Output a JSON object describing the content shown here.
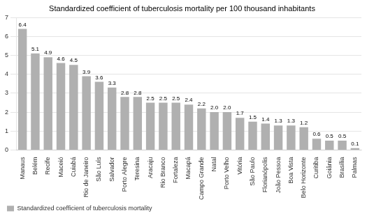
{
  "chart_data": {
    "type": "bar",
    "title": "Standardized coefficient of tuberculosis mortality per 100 thousand inhabitants",
    "categories": [
      "Manaus",
      "Belém",
      "Recife",
      "Maceió",
      "Cuiabá",
      "Rio de Janeiro",
      "São Luís",
      "Salvador",
      "Porto Alegre",
      "Teresina",
      "Aracaju",
      "Rio Branco",
      "Fortaleza",
      "Macapá",
      "Campo Grande",
      "Natal",
      "Porto Velho",
      "Vitória",
      "São Paulo",
      "Florianópolis",
      "João Pessoa",
      "Boa Vista",
      "Belo Horizonte",
      "Curitiba",
      "Goiânia",
      "Brasília",
      "Palmas"
    ],
    "series": [
      {
        "name": "Standardized coefficient of tuberculosis mortality",
        "color": "#b0b0b0",
        "values": [
          6.4,
          5.1,
          4.9,
          4.6,
          4.5,
          3.9,
          3.6,
          3.3,
          2.8,
          2.8,
          2.5,
          2.5,
          2.5,
          2.4,
          2.2,
          2.0,
          2.0,
          1.7,
          1.5,
          1.4,
          1.3,
          1.3,
          1.2,
          0.6,
          0.5,
          0.5,
          0.1
        ],
        "value_labels": [
          "6.4",
          "5.1",
          "4.9",
          "4.6",
          "4.5",
          "3.9",
          "3.6",
          "3.3",
          "2.8",
          "2.8",
          "2.5",
          "2.5",
          "2.5",
          "2.4",
          "2.2",
          "2.0",
          "2.0",
          "1.7",
          "1.5",
          "1.4",
          "1.3",
          "1.3",
          "1.2",
          "0.6",
          "0.5",
          "0.5",
          "0.1"
        ]
      }
    ],
    "ylim": [
      0,
      7
    ],
    "yticks": [
      0,
      1,
      2,
      3,
      4,
      5,
      6,
      7
    ],
    "grid": true,
    "legend": "lower left",
    "data_labels": true
  }
}
